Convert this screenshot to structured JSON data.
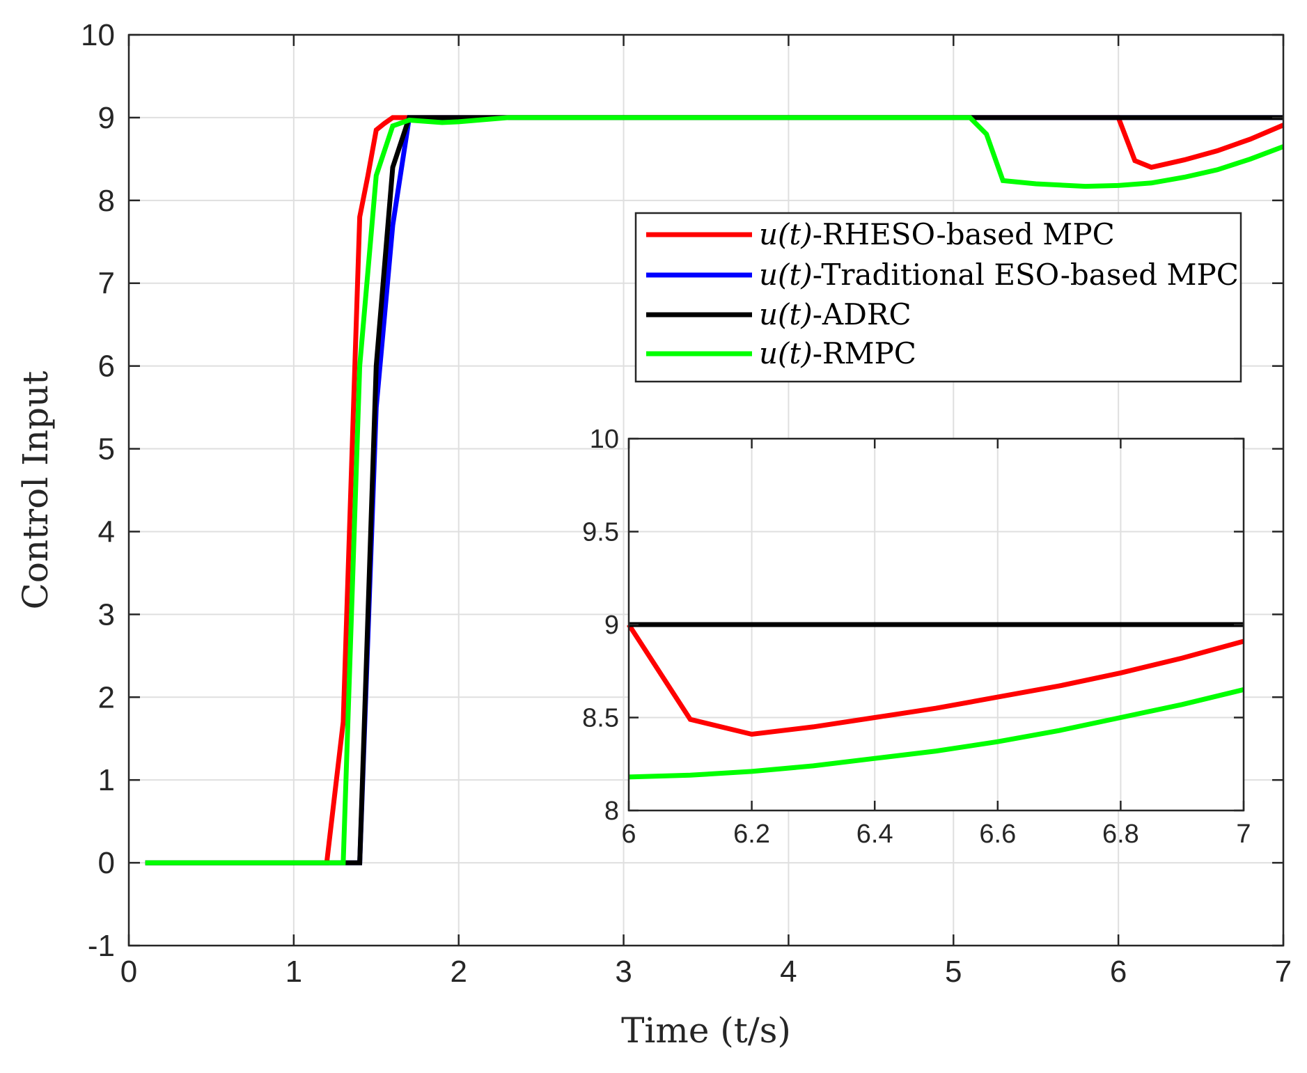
{
  "chart_data": [
    {
      "type": "line",
      "name": "main",
      "title": "",
      "xlabel": "Time (t/s)",
      "ylabel": "Control Input",
      "xlim": [
        0,
        7
      ],
      "ylim": [
        -1,
        10
      ],
      "xticks": [
        0,
        1,
        2,
        3,
        4,
        5,
        6,
        7
      ],
      "xtick_labels": [
        "0",
        "1",
        "2",
        "3",
        "4",
        "5",
        "6",
        "7"
      ],
      "yticks": [
        -1,
        0,
        1,
        2,
        3,
        4,
        5,
        6,
        7,
        8,
        9,
        10
      ],
      "ytick_labels": [
        "-1",
        "0",
        "1",
        "2",
        "3",
        "4",
        "5",
        "6",
        "7",
        "8",
        "9",
        "10"
      ],
      "grid": true,
      "legend_position": "upper-right (center)",
      "series": [
        {
          "name": "u(t)-RHESO-based MPC",
          "legend_math": "u(t)",
          "legend_rest": "-RHESO-based MPC",
          "color": "#ff0000",
          "x": [
            0.1,
            1.2,
            1.3,
            1.4,
            1.45,
            1.5,
            1.55,
            1.6,
            1.7,
            2.0,
            3.0,
            4.0,
            5.0,
            6.0,
            6.1,
            6.2,
            6.4,
            6.6,
            6.8,
            7.0
          ],
          "y": [
            0,
            0,
            1.7,
            7.8,
            8.3,
            8.85,
            8.93,
            9,
            9,
            9,
            9,
            9,
            9,
            9,
            8.48,
            8.4,
            8.49,
            8.6,
            8.74,
            8.91
          ]
        },
        {
          "name": "u(t)-Traditional ESO-based MPC",
          "legend_math": "u(t)",
          "legend_rest": "-Traditional ESO-based MPC",
          "color": "#0000ff",
          "x": [
            0.1,
            1.4,
            1.5,
            1.6,
            1.7,
            2.0,
            3.0,
            4.0,
            5.0,
            6.0,
            7.0
          ],
          "y": [
            0,
            0,
            5.5,
            7.7,
            9,
            9,
            9,
            9,
            9,
            9,
            9
          ]
        },
        {
          "name": "u(t)-ADRC",
          "legend_math": "u(t)",
          "legend_rest": "-ADRC",
          "color": "#000000",
          "x": [
            0.1,
            1.3,
            1.4,
            1.5,
            1.6,
            1.7,
            2.0,
            3.0,
            4.0,
            5.0,
            6.0,
            7.0
          ],
          "y": [
            0,
            0,
            0,
            6.0,
            8.4,
            9,
            9,
            9,
            9,
            9,
            9,
            9
          ]
        },
        {
          "name": "u(t)-RMPC",
          "legend_math": "u(t)",
          "legend_rest": "-RMPC",
          "color": "#00ff00",
          "x": [
            0.1,
            1.3,
            1.4,
            1.5,
            1.6,
            1.7,
            1.9,
            2.0,
            2.3,
            3.0,
            4.0,
            5.0,
            5.1,
            5.2,
            5.3,
            5.5,
            5.8,
            6.0,
            6.2,
            6.4,
            6.6,
            6.8,
            7.0
          ],
          "y": [
            0,
            0,
            6.0,
            8.3,
            8.9,
            8.97,
            8.94,
            8.95,
            9.0,
            9,
            9,
            9,
            9,
            8.8,
            8.24,
            8.2,
            8.17,
            8.18,
            8.21,
            8.28,
            8.37,
            8.5,
            8.65
          ]
        }
      ]
    },
    {
      "type": "line",
      "name": "inset",
      "title": "",
      "xlabel": "",
      "ylabel": "",
      "xlim": [
        6,
        7
      ],
      "ylim": [
        8,
        10
      ],
      "xticks": [
        6,
        6.2,
        6.4,
        6.6,
        6.8,
        7
      ],
      "xtick_labels": [
        "6",
        "6.2",
        "6.4",
        "6.6",
        "6.8",
        "7"
      ],
      "yticks": [
        8,
        8.5,
        9,
        9.5,
        10
      ],
      "ytick_labels": [
        "8",
        "8.5",
        "9",
        "9.5",
        "10"
      ],
      "grid": true,
      "series": [
        {
          "name": "u(t)-RHESO-based MPC",
          "color": "#ff0000",
          "x": [
            6.0,
            6.1,
            6.2,
            6.3,
            6.4,
            6.5,
            6.6,
            6.7,
            6.8,
            6.9,
            7.0
          ],
          "y": [
            9.0,
            8.49,
            8.41,
            8.45,
            8.5,
            8.55,
            8.61,
            8.67,
            8.74,
            8.82,
            8.91
          ]
        },
        {
          "name": "u(t)-ADRC",
          "color": "#000000",
          "x": [
            6.0,
            7.0
          ],
          "y": [
            9.0,
            9.0
          ]
        },
        {
          "name": "u(t)-RMPC",
          "color": "#00ff00",
          "x": [
            6.0,
            6.1,
            6.2,
            6.3,
            6.4,
            6.5,
            6.6,
            6.7,
            6.8,
            6.9,
            7.0
          ],
          "y": [
            8.18,
            8.19,
            8.21,
            8.24,
            8.28,
            8.32,
            8.37,
            8.43,
            8.5,
            8.57,
            8.65
          ]
        }
      ]
    }
  ]
}
